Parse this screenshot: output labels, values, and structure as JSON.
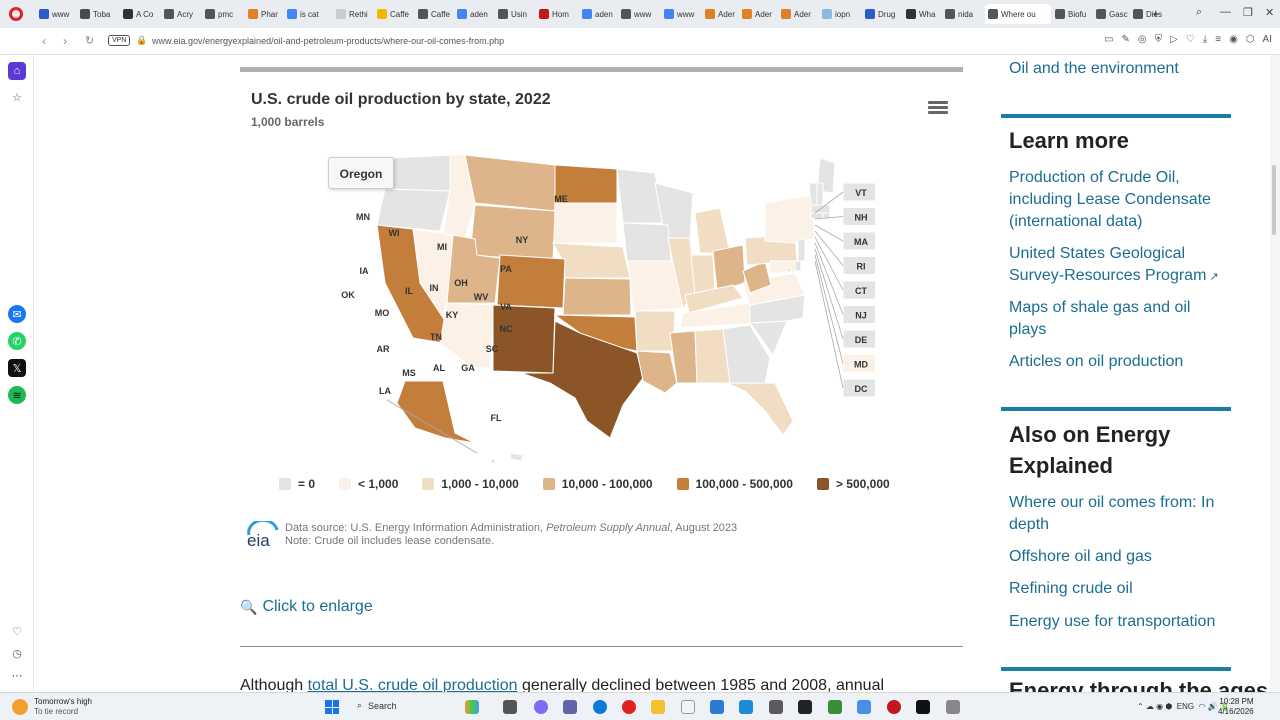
{
  "browser": {
    "tabs": [
      {
        "label": "www",
        "color": "#2a5dc9"
      },
      {
        "label": "Toba",
        "color": "#4a4a4a"
      },
      {
        "label": "A Co",
        "color": "#333"
      },
      {
        "label": "Acry",
        "color": "#555"
      },
      {
        "label": "pmc",
        "color": "#555"
      },
      {
        "label": "Phar",
        "color": "#e0812a"
      },
      {
        "label": "is cat",
        "color": "#4285f4"
      },
      {
        "label": "Rethi",
        "color": "#ccc"
      },
      {
        "label": "Caffe",
        "color": "#f2b705"
      },
      {
        "label": "Caffe",
        "color": "#555"
      },
      {
        "label": "aden",
        "color": "#4285f4"
      },
      {
        "label": "Usin",
        "color": "#555"
      },
      {
        "label": "Hom",
        "color": "#c4161c"
      },
      {
        "label": "aden",
        "color": "#4285f4"
      },
      {
        "label": "www",
        "color": "#555"
      },
      {
        "label": "www",
        "color": "#4285f4"
      },
      {
        "label": "Ader",
        "color": "#e0812a"
      },
      {
        "label": "Ader",
        "color": "#e0812a"
      },
      {
        "label": "Ader",
        "color": "#e0812a"
      },
      {
        "label": "iopn",
        "color": "#8fb8de"
      },
      {
        "label": "Drug",
        "color": "#2a5dc9"
      },
      {
        "label": "Wha",
        "color": "#333"
      },
      {
        "label": "nida",
        "color": "#555"
      },
      {
        "label": "Where ou",
        "color": "#555",
        "active": true
      },
      {
        "label": "Biofu",
        "color": "#555"
      },
      {
        "label": "Gasc",
        "color": "#555"
      },
      {
        "label": "Dies",
        "color": "#555"
      }
    ],
    "new_tab": "+",
    "vpn": "VPN",
    "url": "www.eia.gov/energyexplained/oil-and-petroleum-products/where-our-oil-comes-from.php"
  },
  "chart": {
    "title": "U.S. crude oil production by state, 2022",
    "subtitle": "1,000 barrels",
    "tooltip": "Oregon",
    "legend": [
      {
        "label": "= 0",
        "color": "#e4e4e4"
      },
      {
        "label": "< 1,000",
        "color": "#fbf1e6"
      },
      {
        "label": "1,000 - 10,000",
        "color": "#f1dcc4"
      },
      {
        "label": "10,000 - 100,000",
        "color": "#deb48a"
      },
      {
        "label": "100,000 - 500,000",
        "color": "#c47e3c"
      },
      {
        "label": "> 500,000",
        "color": "#8b5528"
      }
    ],
    "source_prefix": "Data source: U.S. Energy Information Administration, ",
    "source_italic": "Petroleum Supply Annual",
    "source_suffix": ", August 2023",
    "note": "Note: Crude oil includes lease condensate.",
    "logo_text": "eia"
  },
  "chart_data": {
    "type": "choropleth",
    "title": "U.S. crude oil production by state, 2022",
    "subtitle": "1,000 barrels",
    "legend_bins": [
      "= 0",
      "< 1,000",
      "1,000 - 10,000",
      "10,000 - 100,000",
      "100,000 - 500,000",
      "> 500,000"
    ],
    "states": {
      "WA": "= 0",
      "OR": "= 0",
      "ID": "< 1,000",
      "MT": "10,000 - 100,000",
      "ND": "100,000 - 500,000",
      "SD": "< 1,000",
      "WY": "10,000 - 100,000",
      "NE": "1,000 - 10,000",
      "NV": "< 1,000",
      "UT": "10,000 - 100,000",
      "CO": "100,000 - 500,000",
      "KS": "10,000 - 100,000",
      "CA": "100,000 - 500,000",
      "AZ": "< 1,000",
      "NM": "> 500,000",
      "OK": "100,000 - 500,000",
      "TX": "> 500,000",
      "AK": "100,000 - 500,000",
      "HI": "= 0",
      "MN": "= 0",
      "WI": "= 0",
      "IA": "= 0",
      "MO": "< 1,000",
      "AR": "1,000 - 10,000",
      "LA": "10,000 - 100,000",
      "MI": "1,000 - 10,000",
      "IL": "1,000 - 10,000",
      "IN": "1,000 - 10,000",
      "OH": "10,000 - 100,000",
      "KY": "1,000 - 10,000",
      "TN": "< 1,000",
      "MS": "10,000 - 100,000",
      "AL": "1,000 - 10,000",
      "GA": "= 0",
      "FL": "1,000 - 10,000",
      "SC": "= 0",
      "NC": "= 0",
      "VA": "< 1,000",
      "WV": "10,000 - 100,000",
      "PA": "1,000 - 10,000",
      "NY": "< 1,000",
      "ME": "= 0",
      "VT": "= 0",
      "NH": "= 0",
      "MA": "= 0",
      "RI": "= 0",
      "CT": "= 0",
      "NJ": "= 0",
      "DE": "= 0",
      "MD": "< 1,000",
      "DC": "= 0"
    }
  },
  "enlarge": "Click to enlarge",
  "paragraph": {
    "before": "Although ",
    "link": "total U.S. crude oil production",
    "after": " generally declined between 1985 and 2008, annual"
  },
  "right": {
    "top_link": "Oil and the environment",
    "learn_more": "Learn more",
    "learn_links": [
      "Production of Crude Oil, including Lease Condensate (international data)",
      "United States Geological Survey-Resources Program",
      "Maps of shale gas and oil plays",
      "Articles on oil production"
    ],
    "also_on": "Also on Energy Explained",
    "also_links": [
      "Where our oil comes from: In depth",
      "Offshore oil and gas",
      "Refining crude oil",
      "Energy use for transportation"
    ],
    "next_head": "Energy through the ages"
  },
  "taskbar": {
    "weather_title": "Tomorrow's high",
    "weather_sub": "To tie record",
    "search": "Search",
    "lang": "ENG",
    "time": "10:28 PM",
    "date": "4/16/2026"
  }
}
